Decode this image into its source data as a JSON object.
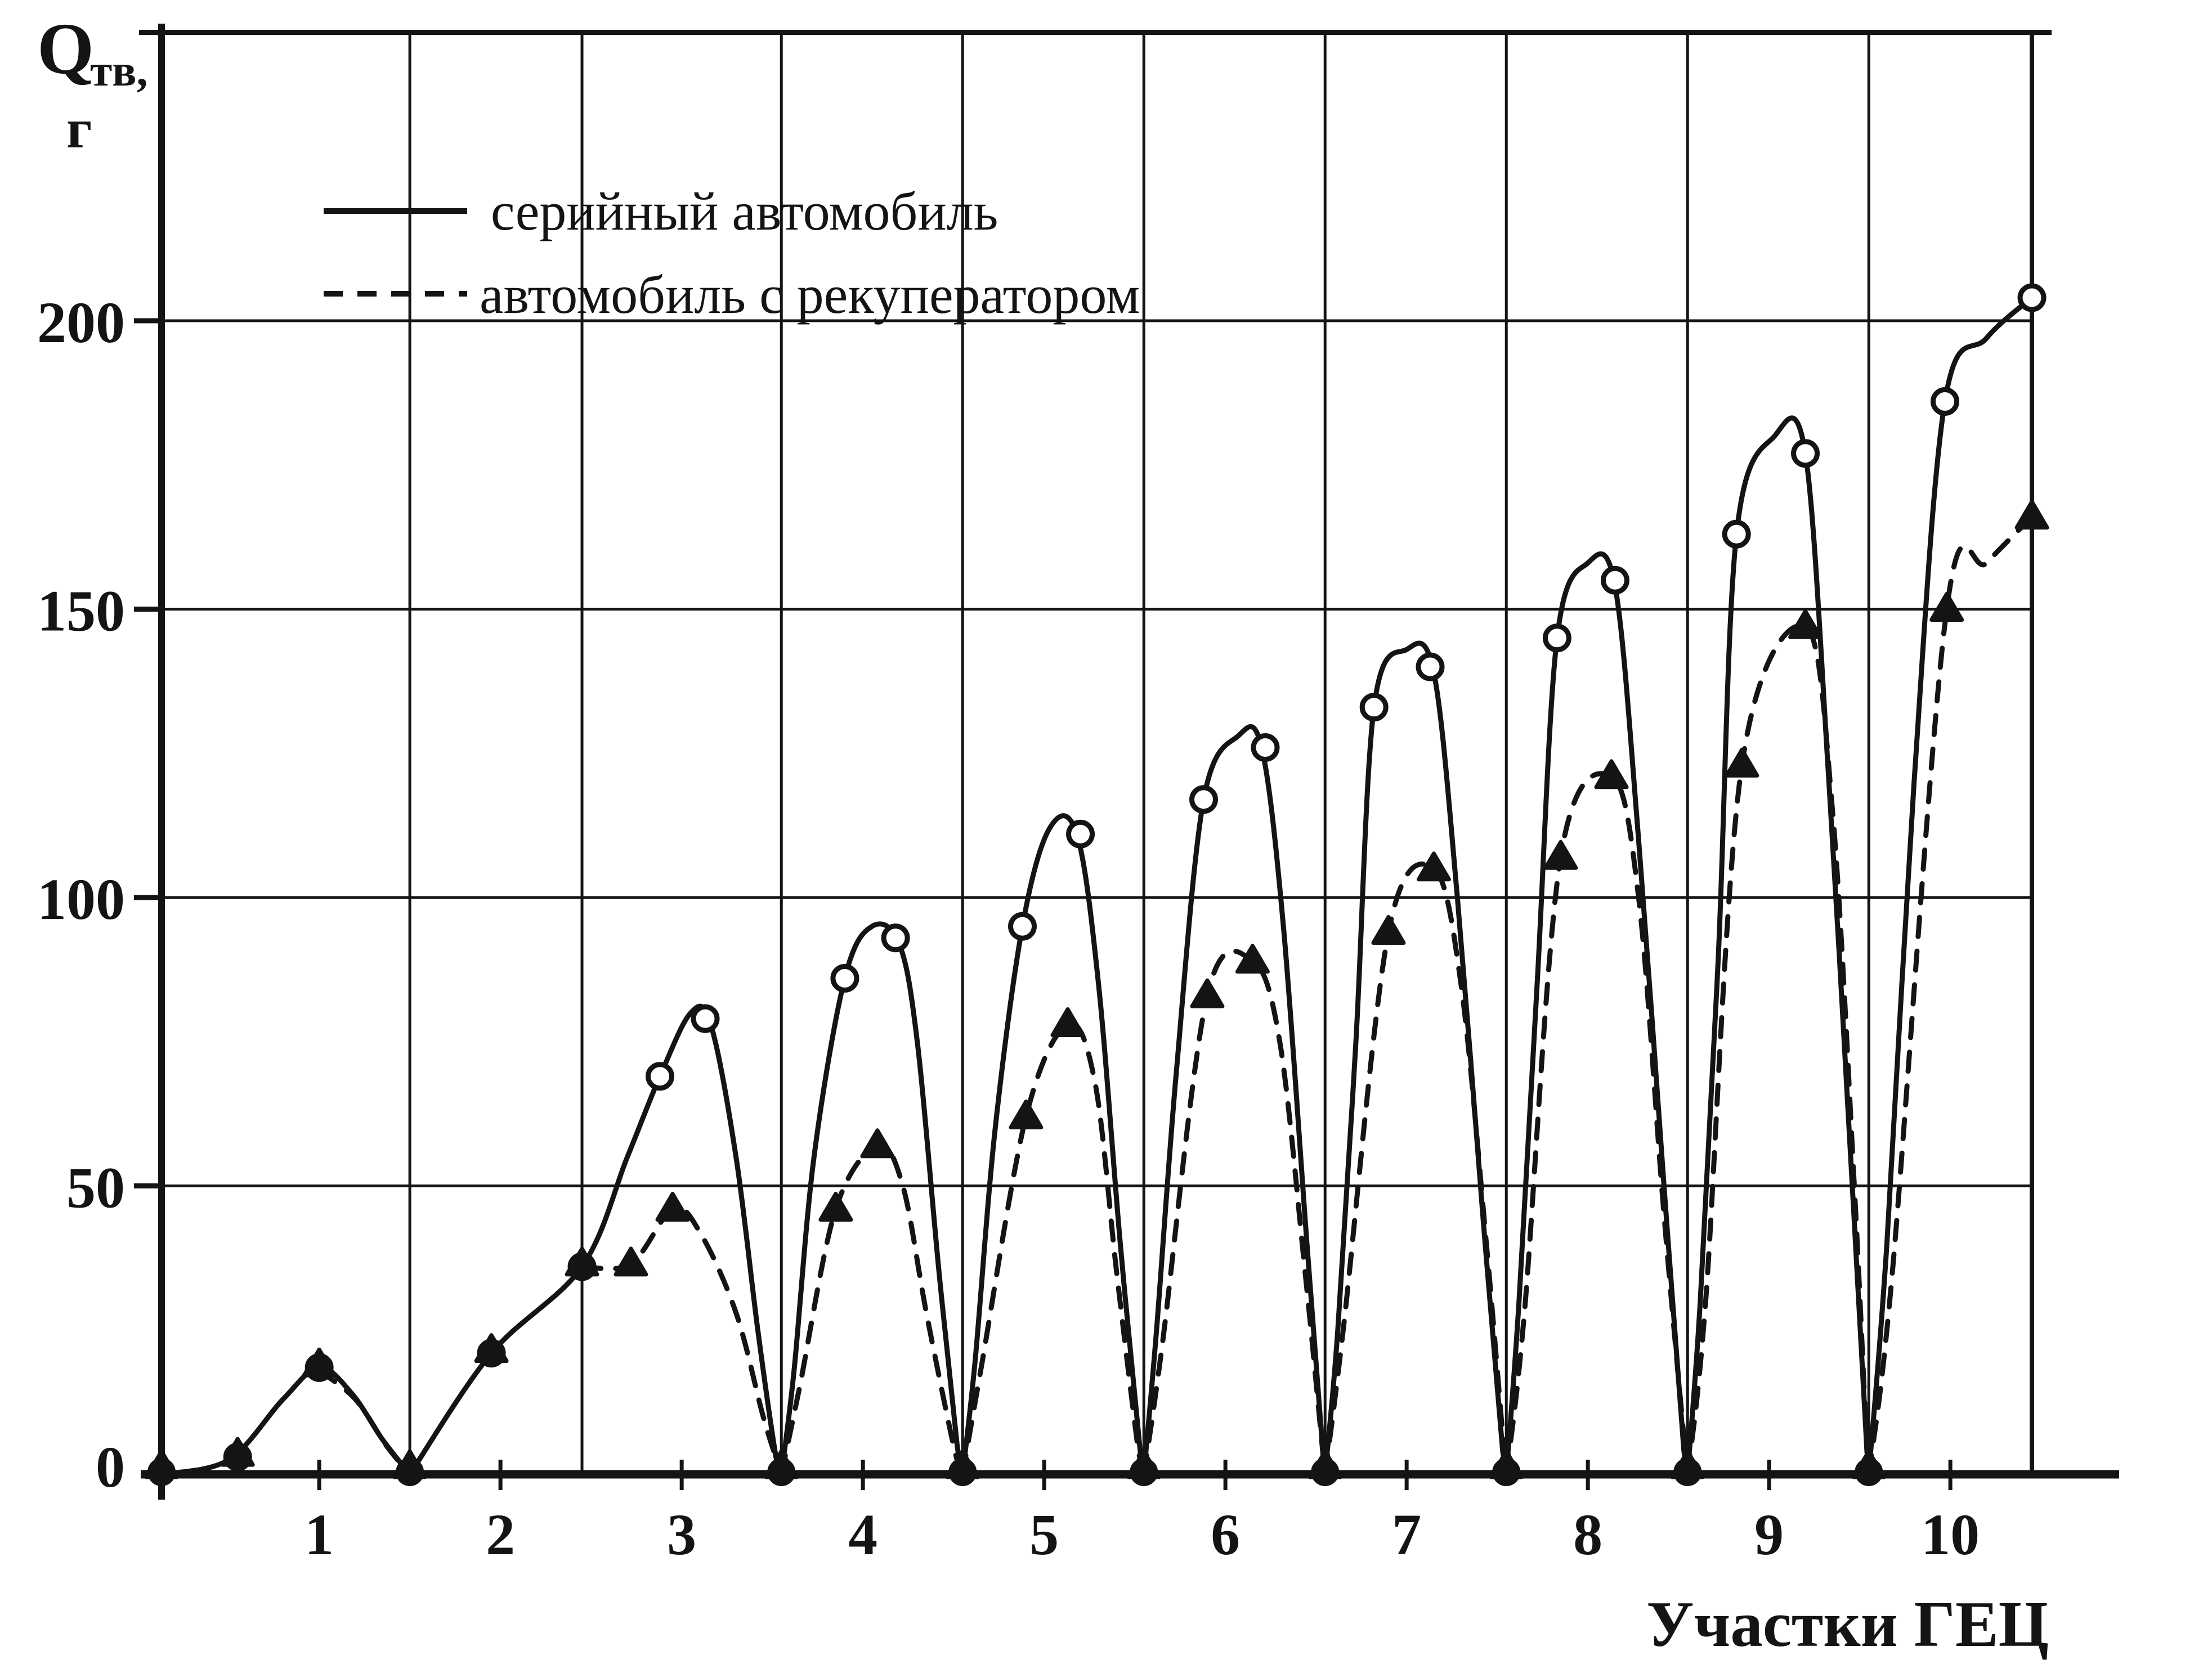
{
  "page": {
    "background": "#ffffff",
    "ink": "#141414"
  },
  "chart_data": {
    "type": "line",
    "title": "",
    "ylabel_q": "Q",
    "ylabel_sub": "тв,",
    "ylabel_unit": "г",
    "xlabel": "Участки ГЕЦ",
    "ylim": [
      0,
      250
    ],
    "xlim_units": [
      0,
      10.9
    ],
    "y_ticks": [
      {
        "v": 0,
        "label": "0"
      },
      {
        "v": 50,
        "label": "50"
      },
      {
        "v": 100,
        "label": "100"
      },
      {
        "v": 150,
        "label": "150"
      },
      {
        "v": 200,
        "label": "200"
      }
    ],
    "x_ticks": [
      {
        "u": 1,
        "label": "1"
      },
      {
        "u": 2,
        "label": "2"
      },
      {
        "u": 3,
        "label": "3"
      },
      {
        "u": 4,
        "label": "4"
      },
      {
        "u": 5,
        "label": "5"
      },
      {
        "u": 6,
        "label": "6"
      },
      {
        "u": 7,
        "label": "7"
      },
      {
        "u": 8,
        "label": "8"
      },
      {
        "u": 9,
        "label": "9"
      },
      {
        "u": 10,
        "label": "10"
      }
    ],
    "grid": {
      "h_values": [
        50,
        100,
        150,
        200
      ],
      "v_units": [
        1.5,
        2.45,
        3.55,
        4.55,
        5.55,
        6.55,
        7.55,
        8.55,
        9.55
      ],
      "top_border_value": 250,
      "right_border_unit": 10.45
    },
    "legend": [
      {
        "label": "серийный автомобиль",
        "style": "solid"
      },
      {
        "label": "автомобиль с рекуператором",
        "style": "dashed"
      }
    ],
    "zero_points_units": [
      0.13,
      1.5,
      3.55,
      4.55,
      5.55,
      6.55,
      7.55,
      8.55,
      9.55
    ],
    "series": [
      {
        "name": "серийный автомобиль",
        "style": "solid",
        "marker": "circle",
        "peaks_by_section": [
          18.5,
          36,
          80,
          95,
          112,
          128,
          143,
          158,
          180,
          204
        ],
        "segments": [
          [
            [
              0.13,
              0
            ],
            [
              0.5,
              2.5
            ],
            [
              0.8,
              13
            ],
            [
              1.0,
              18.5
            ],
            [
              1.18,
              14
            ],
            [
              1.35,
              6
            ],
            [
              1.5,
              0
            ]
          ],
          [
            [
              1.5,
              0
            ],
            [
              1.95,
              21
            ],
            [
              2.45,
              36
            ],
            [
              2.7,
              55
            ],
            [
              2.88,
              69
            ],
            [
              3.05,
              80
            ],
            [
              3.16,
              78
            ],
            [
              3.3,
              55
            ],
            [
              3.42,
              25
            ],
            [
              3.52,
              3
            ],
            [
              3.55,
              0
            ]
          ],
          [
            [
              3.55,
              0
            ],
            [
              3.62,
              18
            ],
            [
              3.73,
              55
            ],
            [
              3.9,
              86
            ],
            [
              4.05,
              95
            ],
            [
              4.2,
              92
            ],
            [
              4.3,
              75
            ],
            [
              4.42,
              35
            ],
            [
              4.52,
              5
            ],
            [
              4.55,
              0
            ]
          ],
          [
            [
              4.55,
              0
            ],
            [
              4.62,
              20
            ],
            [
              4.73,
              60
            ],
            [
              4.88,
              95
            ],
            [
              5.03,
              112
            ],
            [
              5.18,
              111
            ],
            [
              5.3,
              85
            ],
            [
              5.42,
              40
            ],
            [
              5.53,
              4
            ],
            [
              5.55,
              0
            ]
          ],
          [
            [
              5.55,
              0
            ],
            [
              5.62,
              25
            ],
            [
              5.73,
              70
            ],
            [
              5.88,
              117
            ],
            [
              6.07,
              128
            ],
            [
              6.2,
              126
            ],
            [
              6.32,
              95
            ],
            [
              6.45,
              40
            ],
            [
              6.54,
              3
            ],
            [
              6.55,
              0
            ]
          ],
          [
            [
              6.55,
              0
            ],
            [
              6.62,
              25
            ],
            [
              6.72,
              75
            ],
            [
              6.82,
              133
            ],
            [
              7.0,
              143
            ],
            [
              7.15,
              139
            ],
            [
              7.28,
              100
            ],
            [
              7.42,
              45
            ],
            [
              7.53,
              4
            ],
            [
              7.55,
              0
            ]
          ],
          [
            [
              7.55,
              0
            ],
            [
              7.62,
              30
            ],
            [
              7.72,
              85
            ],
            [
              7.83,
              145
            ],
            [
              8.0,
              158
            ],
            [
              8.15,
              154
            ],
            [
              8.28,
              110
            ],
            [
              8.42,
              50
            ],
            [
              8.53,
              4
            ],
            [
              8.55,
              0
            ]
          ],
          [
            [
              8.55,
              0
            ],
            [
              8.62,
              30
            ],
            [
              8.72,
              90
            ],
            [
              8.82,
              163
            ],
            [
              9.03,
              180
            ],
            [
              9.2,
              177
            ],
            [
              9.33,
              120
            ],
            [
              9.45,
              55
            ],
            [
              9.54,
              4
            ],
            [
              9.55,
              0
            ]
          ],
          [
            [
              9.55,
              0
            ],
            [
              9.65,
              40
            ],
            [
              9.8,
              120
            ],
            [
              9.97,
              186
            ],
            [
              10.2,
              197
            ],
            [
              10.45,
              204
            ]
          ]
        ],
        "markers": [
          [
            0.55,
            3
          ],
          [
            1.0,
            18.5
          ],
          [
            1.95,
            21
          ],
          [
            2.45,
            36
          ],
          [
            2.88,
            69
          ],
          [
            3.13,
            79
          ],
          [
            3.9,
            86
          ],
          [
            4.18,
            93
          ],
          [
            4.88,
            95
          ],
          [
            5.2,
            111
          ],
          [
            5.88,
            117
          ],
          [
            6.22,
            126
          ],
          [
            6.82,
            133
          ],
          [
            7.13,
            140
          ],
          [
            7.83,
            145
          ],
          [
            8.15,
            155
          ],
          [
            8.82,
            163
          ],
          [
            9.2,
            177
          ],
          [
            9.97,
            186
          ],
          [
            10.45,
            204
          ]
        ]
      },
      {
        "name": "автомобиль с рекуператором",
        "style": "dashed",
        "marker": "triangle",
        "peaks_by_section": [
          18,
          36,
          46,
          57,
          78,
          89,
          105,
          121,
          147,
          166
        ],
        "segments": [
          [
            [
              1.0,
              18
            ],
            [
              1.2,
              13
            ],
            [
              1.37,
              5
            ],
            [
              1.5,
              0
            ]
          ],
          [
            [
              2.45,
              36
            ],
            [
              2.72,
              36.5
            ],
            [
              2.95,
              46
            ],
            [
              3.1,
              42
            ],
            [
              3.3,
              28
            ],
            [
              3.45,
              10
            ],
            [
              3.55,
              0
            ]
          ],
          [
            [
              3.55,
              0
            ],
            [
              3.65,
              15
            ],
            [
              3.85,
              46
            ],
            [
              4.08,
              57
            ],
            [
              4.22,
              50
            ],
            [
              4.35,
              28
            ],
            [
              4.5,
              5
            ],
            [
              4.55,
              0
            ]
          ],
          [
            [
              4.55,
              0
            ],
            [
              4.65,
              18
            ],
            [
              4.9,
              62
            ],
            [
              5.13,
              78
            ],
            [
              5.28,
              68
            ],
            [
              5.4,
              35
            ],
            [
              5.52,
              4
            ],
            [
              5.55,
              0
            ]
          ],
          [
            [
              5.55,
              0
            ],
            [
              5.65,
              22
            ],
            [
              5.9,
              83
            ],
            [
              6.15,
              89
            ],
            [
              6.3,
              75
            ],
            [
              6.44,
              35
            ],
            [
              6.54,
              3
            ],
            [
              6.55,
              0
            ]
          ],
          [
            [
              6.55,
              0
            ],
            [
              6.65,
              25
            ],
            [
              6.9,
              94
            ],
            [
              7.15,
              105
            ],
            [
              7.3,
              85
            ],
            [
              7.44,
              40
            ],
            [
              7.54,
              3
            ],
            [
              7.55,
              0
            ]
          ],
          [
            [
              7.55,
              0
            ],
            [
              7.65,
              28
            ],
            [
              7.85,
              107
            ],
            [
              8.13,
              121
            ],
            [
              8.28,
              100
            ],
            [
              8.42,
              45
            ],
            [
              8.54,
              3
            ],
            [
              8.55,
              0
            ]
          ],
          [
            [
              8.55,
              0
            ],
            [
              8.65,
              30
            ],
            [
              8.85,
              123
            ],
            [
              9.2,
              147
            ],
            [
              9.35,
              115
            ],
            [
              9.47,
              50
            ],
            [
              9.54,
              4
            ],
            [
              9.55,
              0
            ]
          ],
          [
            [
              9.55,
              0
            ],
            [
              9.68,
              35
            ],
            [
              9.98,
              150
            ],
            [
              10.2,
              158
            ],
            [
              10.45,
              166
            ]
          ]
        ],
        "markers": [
          [
            0.55,
            3.5
          ],
          [
            1.0,
            19
          ],
          [
            1.95,
            21.5
          ],
          [
            2.45,
            36.5
          ],
          [
            2.72,
            36.5
          ],
          [
            2.95,
            46
          ],
          [
            3.85,
            46
          ],
          [
            4.08,
            57
          ],
          [
            4.9,
            62
          ],
          [
            5.13,
            78
          ],
          [
            5.9,
            83
          ],
          [
            6.15,
            89
          ],
          [
            6.9,
            94
          ],
          [
            7.15,
            105
          ],
          [
            7.85,
            107
          ],
          [
            8.13,
            121
          ],
          [
            8.85,
            123
          ],
          [
            9.2,
            147
          ],
          [
            9.98,
            150
          ],
          [
            10.45,
            166
          ]
        ]
      }
    ]
  }
}
